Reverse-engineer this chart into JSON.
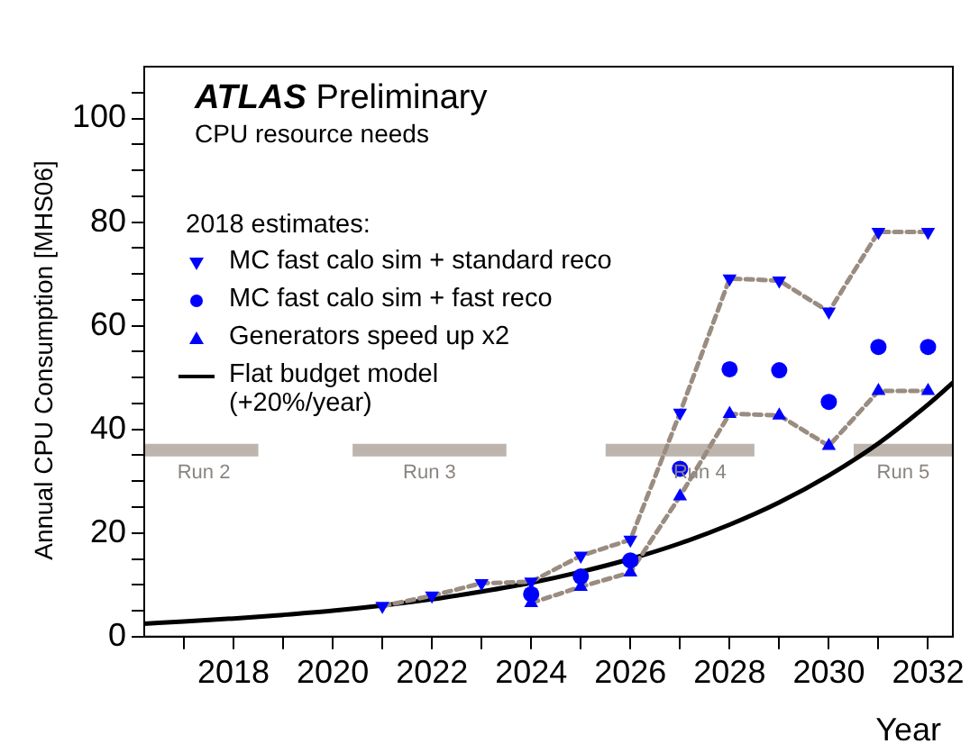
{
  "chart_data": {
    "type": "scatter",
    "title": "ATLAS Preliminary",
    "subtitle": "CPU resource needs",
    "xlabel": "Year",
    "ylabel": "Annual CPU Consumption [MHS06]",
    "legend_title": "2018 estimates:",
    "legend": "top left",
    "x": [
      2021,
      2022,
      2023,
      2024,
      2025,
      2026,
      2027,
      2028,
      2029,
      2030,
      2031,
      2032
    ],
    "series": [
      {
        "type": "line",
        "color": "#9a8c80",
        "marker": "none",
        "line_style": "dashed",
        "values": [
          5.9,
          7.9,
          10.3,
          10.6,
          15.6,
          18.7,
          43.2,
          69.1,
          68.7,
          62.7,
          78.1,
          78.1
        ]
      },
      {
        "type": "line",
        "color": "#9a8c80",
        "marker": "none",
        "line_style": "dashed",
        "x": [
          2024,
          2025,
          2026,
          2027,
          2028,
          2029,
          2030,
          2031,
          2032
        ],
        "values": [
          6.5,
          9.6,
          12.4,
          27.1,
          43.0,
          42.7,
          36.8,
          47.4,
          47.4
        ]
      },
      {
        "name": "MC fast calo sim + standard reco",
        "color": "#0000ff",
        "marker": "triangle-down",
        "values": [
          5.9,
          7.9,
          10.3,
          10.6,
          15.6,
          18.7,
          43.2,
          69.1,
          68.7,
          62.7,
          78.1,
          78.1
        ]
      },
      {
        "name": "MC fast calo sim + fast reco",
        "color": "#0000ff",
        "marker": "circle",
        "x": [
          2024,
          2025,
          2026,
          2027,
          2028,
          2029,
          2030,
          2031,
          2032
        ],
        "values": [
          8.2,
          11.6,
          14.7,
          32.4,
          51.6,
          51.4,
          45.3,
          55.9,
          55.9
        ]
      },
      {
        "name": "Generators speed up x2",
        "color": "#0000ff",
        "marker": "triangle",
        "x": [
          2024,
          2025,
          2026,
          2027,
          2028,
          2029,
          2030,
          2031,
          2032
        ],
        "values": [
          6.5,
          9.6,
          12.4,
          27.1,
          43.0,
          42.7,
          36.8,
          47.4,
          47.4
        ]
      },
      {
        "name": "Flat budget model (+20%/year)",
        "type": "line",
        "color": "#000000",
        "marker": "none",
        "line_style": "solid",
        "x": [
          2016.2,
          2017,
          2018,
          2019,
          2020,
          2021,
          2022,
          2023,
          2024,
          2025,
          2026,
          2027,
          2028,
          2029,
          2030,
          2031,
          2032,
          2032.5
        ],
        "values": [
          2.5,
          2.9,
          3.5,
          4.2,
          5.0,
          6.0,
          7.2,
          8.7,
          10.4,
          12.5,
          15.0,
          18.0,
          21.6,
          25.9,
          31.1,
          37.3,
          44.8,
          49.0
        ]
      },
      {
        "type": "line",
        "color": "#bdb5ad",
        "marker": "none",
        "line_style": "solid",
        "x": [
          2016.2,
          2018.5,
          2019.5,
          2020.4,
          2023.5,
          2024.5,
          2025.5,
          2028.5,
          2029.5,
          2030.5,
          2032.5
        ],
        "values": [
          36,
          36,
          null,
          36,
          36,
          null,
          36,
          36,
          null,
          36,
          36
        ]
      }
    ],
    "annotations": [
      {
        "text": "Run 2",
        "x": 2017.4,
        "y": 36
      },
      {
        "text": "Run 3",
        "x": 2021.95,
        "y": 36
      },
      {
        "text": "Run 4",
        "x": 2027.4,
        "y": 36
      },
      {
        "text": "Run 5",
        "x": 2031.5,
        "y": 36
      }
    ],
    "xlim": [
      2016.2,
      2032.5
    ],
    "xticks": [
      {
        "value": 2017,
        "label": null
      },
      2018,
      {
        "value": 2019,
        "label": null
      },
      2020,
      {
        "value": 2021,
        "label": null
      },
      2022,
      {
        "value": 2023,
        "label": null
      },
      2024,
      {
        "value": 2025,
        "label": null
      },
      2026,
      {
        "value": 2027,
        "label": null
      },
      2028,
      {
        "value": 2029,
        "label": null
      },
      2030,
      {
        "value": 2031,
        "label": null
      },
      2032
    ],
    "ylim": [
      0,
      110
    ],
    "yticks": [
      0,
      {
        "value": 5,
        "label": null
      },
      {
        "value": 10,
        "label": null
      },
      {
        "value": 15,
        "label": null
      },
      20,
      {
        "value": 25,
        "label": null
      },
      {
        "value": 30,
        "label": null
      },
      {
        "value": 35,
        "label": null
      },
      40,
      {
        "value": 45,
        "label": null
      },
      {
        "value": 50,
        "label": null
      },
      {
        "value": 55,
        "label": null
      },
      60,
      {
        "value": 65,
        "label": null
      },
      {
        "value": 70,
        "label": null
      },
      {
        "value": 75,
        "label": null
      },
      80,
      {
        "value": 85,
        "label": null
      },
      {
        "value": 90,
        "label": null
      },
      {
        "value": 95,
        "label": null
      },
      100,
      {
        "value": 105,
        "label": null
      }
    ],
    "grid": false
  }
}
